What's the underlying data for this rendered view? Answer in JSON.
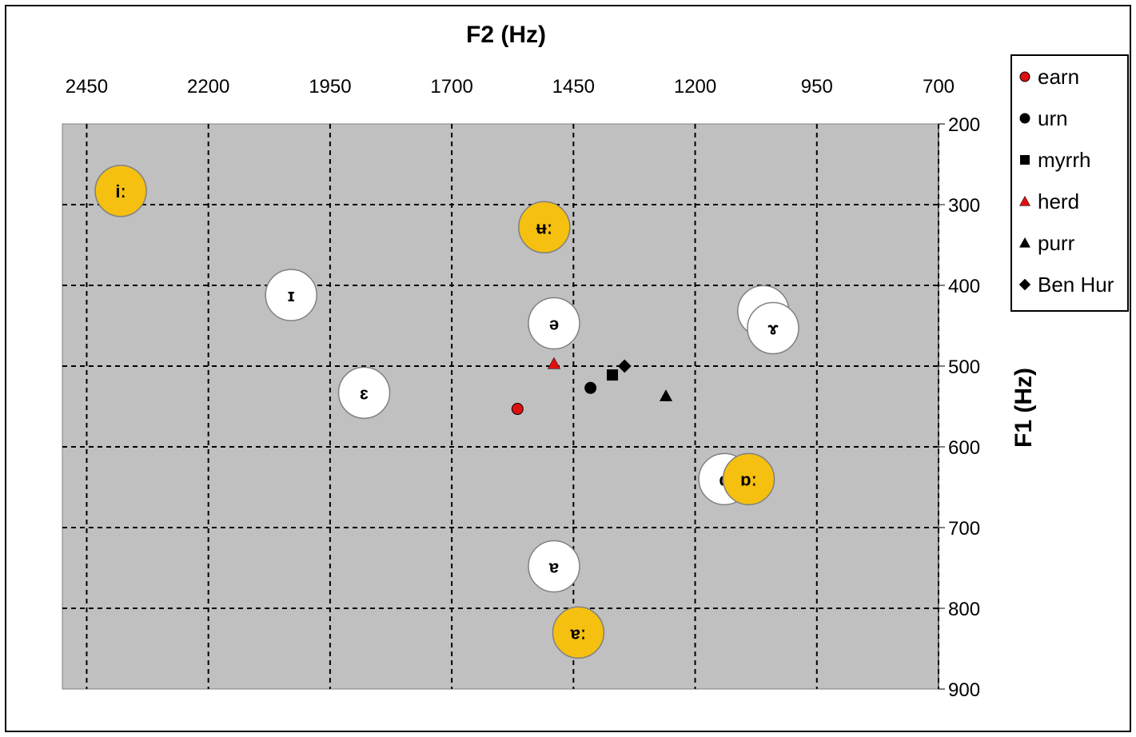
{
  "chart_data": {
    "type": "scatter",
    "title": "",
    "xlabel": "F2 (Hz)",
    "ylabel": "F1 (Hz)",
    "x_axis": {
      "reversed": true,
      "position": "top",
      "range": [
        2500,
        700
      ],
      "ticks": [
        2450,
        2200,
        1950,
        1700,
        1450,
        1200,
        950,
        700
      ]
    },
    "y_axis": {
      "reversed": true,
      "position": "right",
      "range": [
        200,
        900
      ],
      "ticks": [
        200,
        300,
        400,
        500,
        600,
        700,
        800,
        900
      ]
    },
    "grid": true,
    "legend_position": "right",
    "colors": {
      "plot_bg": "#c0c0c0",
      "long_vowel": "#f5c010",
      "short_vowel": "#ffffff",
      "red": "#e01010",
      "black": "#000000"
    },
    "vowels": [
      {
        "symbol": "iː",
        "x": 2380,
        "y": 283,
        "kind": "long"
      },
      {
        "symbol": "ɪ",
        "x": 2030,
        "y": 412,
        "kind": "short"
      },
      {
        "symbol": "ɛ",
        "x": 1880,
        "y": 533,
        "kind": "short"
      },
      {
        "symbol": "ʉː",
        "x": 1510,
        "y": 328,
        "kind": "long"
      },
      {
        "symbol": "ə",
        "x": 1490,
        "y": 447,
        "kind": "short"
      },
      {
        "symbol": "ʊ",
        "x": 1060,
        "y": 432,
        "kind": "short"
      },
      {
        "symbol": "ɤ",
        "x": 1040,
        "y": 453,
        "kind": "short"
      },
      {
        "symbol": "ɑ",
        "x": 1140,
        "y": 640,
        "kind": "short"
      },
      {
        "symbol": "ɒː",
        "x": 1090,
        "y": 640,
        "kind": "long"
      },
      {
        "symbol": "ɐ",
        "x": 1490,
        "y": 748,
        "kind": "short"
      },
      {
        "symbol": "ɐː",
        "x": 1440,
        "y": 830,
        "kind": "long"
      }
    ],
    "series": [
      {
        "name": "earn",
        "marker": "circle",
        "color": "#e01010",
        "x": [
          1565
        ],
        "y": [
          553
        ]
      },
      {
        "name": "urn",
        "marker": "circle",
        "color": "#000000",
        "x": [
          1415
        ],
        "y": [
          527
        ]
      },
      {
        "name": "myrrh",
        "marker": "square",
        "color": "#000000",
        "x": [
          1370
        ],
        "y": [
          511
        ]
      },
      {
        "name": "herd",
        "marker": "triangle",
        "color": "#e01010",
        "x": [
          1490
        ],
        "y": [
          497
        ]
      },
      {
        "name": "purr",
        "marker": "triangle",
        "color": "#000000",
        "x": [
          1260
        ],
        "y": [
          537
        ]
      },
      {
        "name": "Ben Hur",
        "marker": "diamond",
        "color": "#000000",
        "x": [
          1345
        ],
        "y": [
          500
        ]
      }
    ]
  }
}
